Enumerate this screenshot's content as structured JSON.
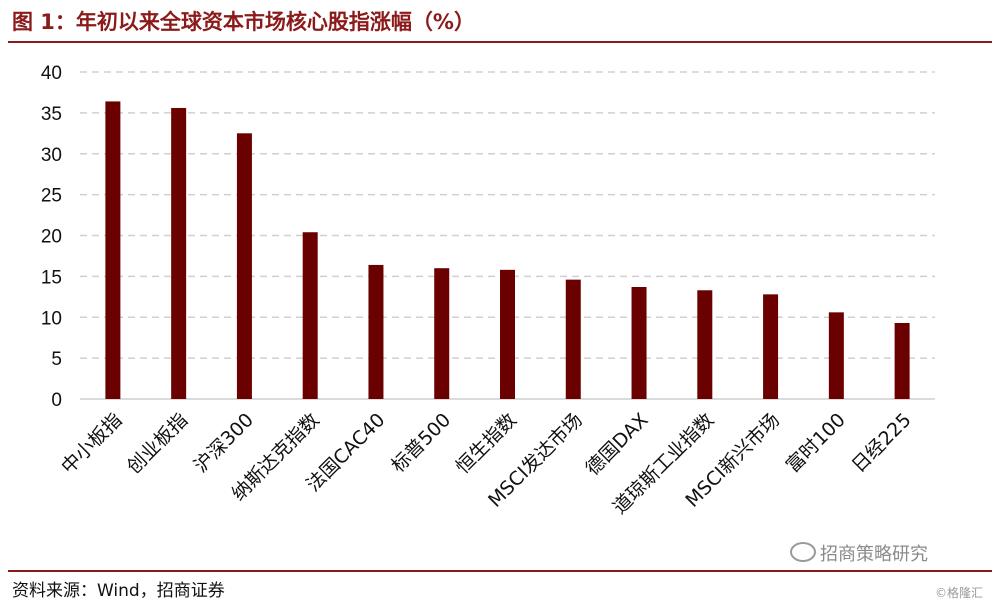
{
  "title": "图 1：年初以来全球资本市场核心股指涨幅（%）",
  "source": "资料来源：Wind，招商证券",
  "watermark": "招商策略研究",
  "watermark2": "©格隆汇",
  "colors": {
    "bar": "#6b0000",
    "accent": "#8b1a1a",
    "grid": "#d0d0d0"
  },
  "chart_data": {
    "type": "bar",
    "title": "年初以来全球资本市场核心股指涨幅（%）",
    "xlabel": "",
    "ylabel": "",
    "ylim": [
      0,
      40
    ],
    "yticks": [
      0,
      5,
      10,
      15,
      20,
      25,
      30,
      35,
      40
    ],
    "grid": true,
    "categories": [
      "中小板指",
      "创业板指",
      "沪深300",
      "纳斯达克指数",
      "法国CAC40",
      "标普500",
      "恒生指数",
      "MSCI发达市场",
      "德国DAX",
      "道琼斯工业指数",
      "MSCI新兴市场",
      "富时100",
      "日经225"
    ],
    "values": [
      36.4,
      35.6,
      32.5,
      20.4,
      16.4,
      16.0,
      15.8,
      14.6,
      13.7,
      13.3,
      12.8,
      10.6,
      9.3
    ]
  }
}
